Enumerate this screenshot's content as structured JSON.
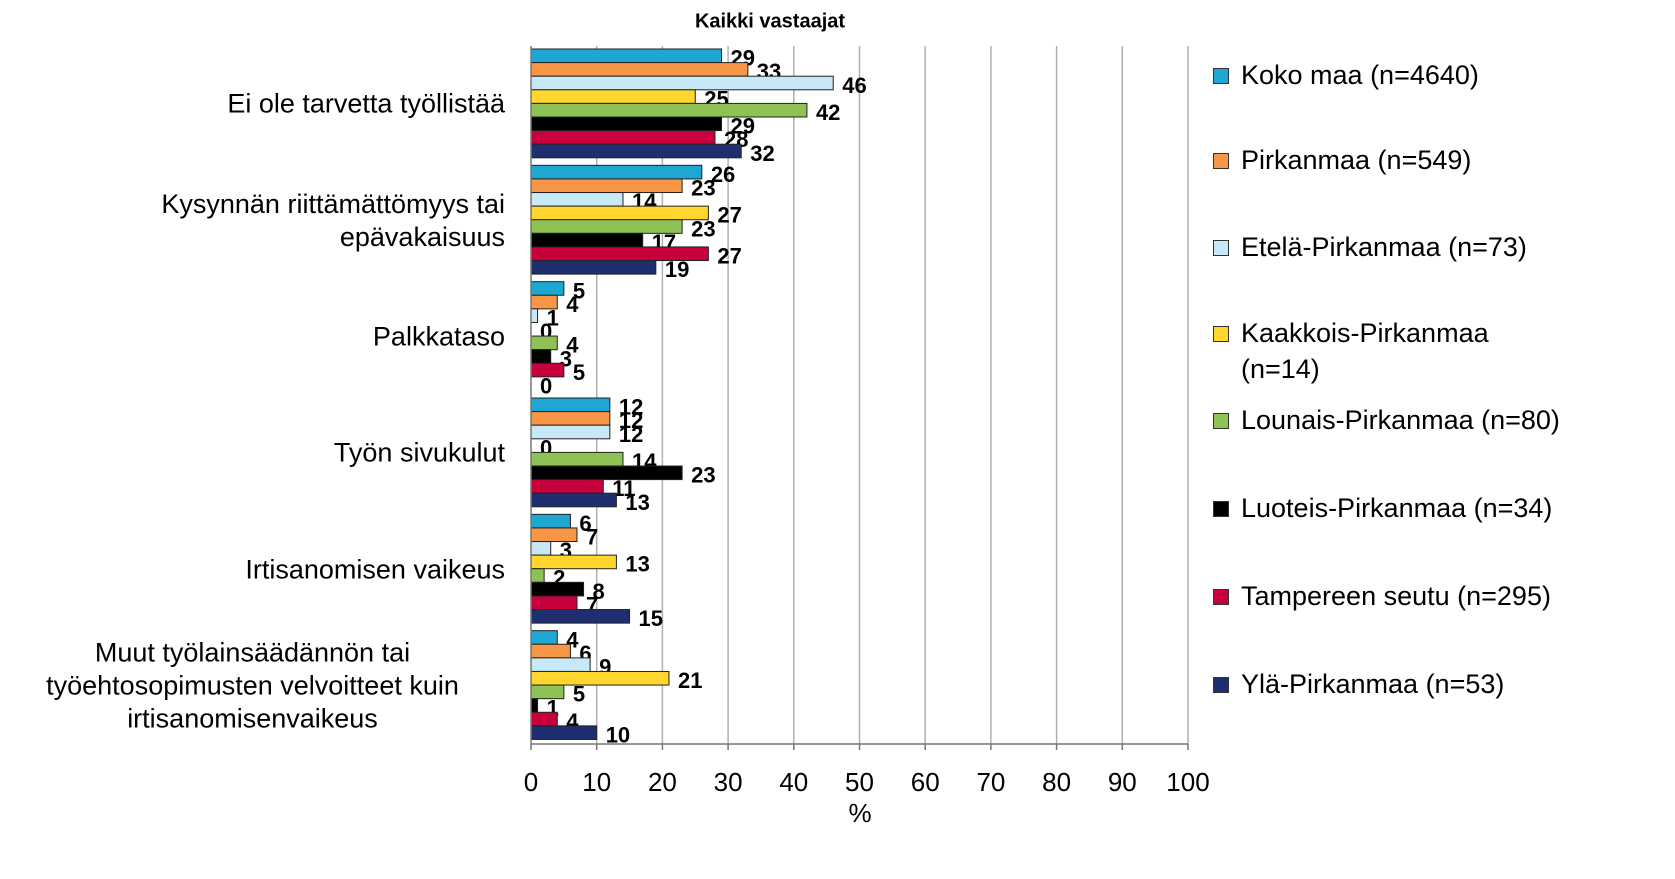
{
  "chart_data": {
    "type": "bar",
    "orientation": "horizontal",
    "title": "Kaikki vastaajat",
    "xlabel": "%",
    "categories": [
      "Ei ole tarvetta työllistää",
      "Kysynnän riittämättömyys tai epävakaisuus",
      "Palkkataso",
      "Työn sivukulut",
      "Irtisanomisen vaikeus",
      "Muut työlainsäädännön tai työehtosopimusten velvoitteet kuin irtisanomisenvaikeus"
    ],
    "series": [
      {
        "name": "Koko maa (n=4640)",
        "color": "#1fa7d3",
        "values": [
          29,
          26,
          5,
          12,
          6,
          4
        ]
      },
      {
        "name": "Pirkanmaa (n=549)",
        "color": "#f79646",
        "values": [
          33,
          23,
          4,
          12,
          7,
          6
        ]
      },
      {
        "name": "Etelä-Pirkanmaa (n=73)",
        "color": "#c6e8f7",
        "values": [
          46,
          14,
          1,
          12,
          3,
          9
        ]
      },
      {
        "name": "Kaakkois-Pirkanmaa (n=14)",
        "color": "#ffd52e",
        "values": [
          25,
          27,
          0,
          0,
          13,
          21
        ]
      },
      {
        "name": "Lounais-Pirkanmaa (n=80)",
        "color": "#8fc255",
        "values": [
          42,
          23,
          4,
          14,
          2,
          5
        ]
      },
      {
        "name": "Luoteis-Pirkanmaa (n=34)",
        "color": "#000000",
        "values": [
          29,
          17,
          3,
          23,
          8,
          1
        ]
      },
      {
        "name": "Tampereen seutu (n=295)",
        "color": "#c8003c",
        "values": [
          28,
          27,
          5,
          11,
          7,
          4
        ]
      },
      {
        "name": "Ylä-Pirkanmaa (n=53)",
        "color": "#1f2e6e",
        "values": [
          32,
          19,
          0,
          13,
          15,
          10
        ]
      }
    ],
    "xlim": [
      0,
      100
    ],
    "xticks": [
      0,
      10,
      20,
      30,
      40,
      50,
      60,
      70,
      80,
      90,
      100
    ],
    "grid": true,
    "legend": "right"
  }
}
